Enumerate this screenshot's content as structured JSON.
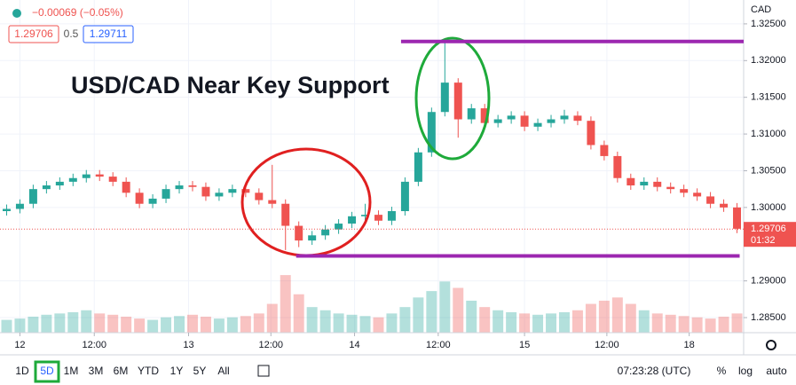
{
  "header": {
    "change": "−0.00069 (−0.05%)",
    "bid": 1.29706,
    "spread": 0.5,
    "ask": 1.29711
  },
  "chart_data": {
    "type": "candlestick",
    "title": "USD/CAD Near Key Support",
    "currency": "CAD",
    "up_color": "#26a69a",
    "down_color": "#ef5350",
    "grid": true,
    "xlim": [
      0,
      56
    ],
    "ylim": [
      1.28295,
      1.32825
    ],
    "yticks": [
      {
        "value": 1.325,
        "label": "1.32500"
      },
      {
        "value": 1.32,
        "label": "1.32000"
      },
      {
        "value": 1.315,
        "label": "1.31500"
      },
      {
        "value": 1.31,
        "label": "1.31000"
      },
      {
        "value": 1.305,
        "label": "1.30500"
      },
      {
        "value": 1.3,
        "label": "1.30000"
      },
      {
        "value": 1.29,
        "label": "1.29000"
      },
      {
        "value": 1.285,
        "label": "1.28500"
      }
    ],
    "xticks": [
      {
        "value": 1.5,
        "label": "12"
      },
      {
        "value": 7.1,
        "label": "12:00"
      },
      {
        "value": 14.2,
        "label": "13"
      },
      {
        "value": 20.4,
        "label": "12:00"
      },
      {
        "value": 26.7,
        "label": "14"
      },
      {
        "value": 33,
        "label": "12:00"
      },
      {
        "value": 39.5,
        "label": "15"
      },
      {
        "value": 45.7,
        "label": "12:00"
      },
      {
        "value": 51.9,
        "label": "18"
      }
    ],
    "open": [
      1.2995,
      1.2998,
      1.3005,
      1.3025,
      1.303,
      1.3035,
      1.304,
      1.3045,
      1.3042,
      1.3035,
      1.302,
      1.3005,
      1.3012,
      1.3025,
      1.303,
      1.3028,
      1.3015,
      1.302,
      1.3025,
      1.302,
      1.301,
      1.3005,
      1.2975,
      1.2955,
      1.2962,
      1.297,
      1.2978,
      1.2988,
      1.299,
      1.2982,
      1.2995,
      1.3035,
      1.3075,
      1.313,
      1.317,
      1.312,
      1.3135,
      1.3115,
      1.312,
      1.3125,
      1.311,
      1.3115,
      1.312,
      1.3125,
      1.3118,
      1.3085,
      1.307,
      1.304,
      1.303,
      1.3035,
      1.3028,
      1.3025,
      1.302,
      1.3015,
      1.3005,
      1.3
    ],
    "high": [
      1.3004,
      1.3011,
      1.3031,
      1.3036,
      1.3041,
      1.3046,
      1.3051,
      1.3051,
      1.3048,
      1.3041,
      1.3026,
      1.3018,
      1.3031,
      1.3036,
      1.3036,
      1.3034,
      1.3026,
      1.3031,
      1.3031,
      1.3026,
      1.3058,
      1.3011,
      1.2981,
      1.2968,
      1.2976,
      1.2984,
      1.2994,
      1.3005,
      1.2996,
      1.3001,
      1.3041,
      1.3081,
      1.3136,
      1.3225,
      1.3176,
      1.3141,
      1.3141,
      1.3126,
      1.3131,
      1.3131,
      1.3121,
      1.3126,
      1.3133,
      1.3131,
      1.3124,
      1.3091,
      1.3076,
      1.3046,
      1.3041,
      1.3041,
      1.3034,
      1.3031,
      1.3026,
      1.3021,
      1.3011,
      1.3006
    ],
    "low": [
      1.2989,
      1.2992,
      1.2999,
      1.3019,
      1.3024,
      1.3029,
      1.3034,
      1.3036,
      1.3029,
      1.3014,
      1.2999,
      1.2999,
      1.3006,
      1.3019,
      1.3022,
      1.3009,
      1.3009,
      1.3014,
      1.3014,
      1.3004,
      1.2999,
      1.2942,
      1.2946,
      1.2949,
      1.2956,
      1.2964,
      1.2972,
      1.2982,
      1.2976,
      1.2976,
      1.2989,
      1.3029,
      1.3069,
      1.3124,
      1.3095,
      1.3114,
      1.3109,
      1.3109,
      1.3114,
      1.3104,
      1.3104,
      1.3109,
      1.3114,
      1.3112,
      1.3079,
      1.3064,
      1.3034,
      1.3024,
      1.3024,
      1.3022,
      1.3019,
      1.3014,
      1.3009,
      1.2999,
      1.2994,
      1.2965
    ],
    "close": [
      1.2998,
      1.3005,
      1.3025,
      1.303,
      1.3035,
      1.304,
      1.3045,
      1.3042,
      1.3035,
      1.302,
      1.3005,
      1.3012,
      1.3025,
      1.303,
      1.3028,
      1.3015,
      1.302,
      1.3025,
      1.302,
      1.301,
      1.3005,
      1.2975,
      1.2955,
      1.2962,
      1.297,
      1.2978,
      1.2988,
      1.299,
      1.2982,
      1.2995,
      1.3035,
      1.3075,
      1.313,
      1.317,
      1.312,
      1.3135,
      1.3115,
      1.312,
      1.3125,
      1.311,
      1.3115,
      1.312,
      1.3125,
      1.3118,
      1.3085,
      1.307,
      1.304,
      1.303,
      1.3035,
      1.3028,
      1.3025,
      1.302,
      1.3015,
      1.3005,
      1.3,
      1.2971
    ],
    "volume": [
      20,
      22,
      25,
      28,
      30,
      32,
      35,
      30,
      28,
      25,
      22,
      20,
      24,
      26,
      28,
      25,
      22,
      24,
      26,
      30,
      45,
      90,
      60,
      40,
      35,
      30,
      28,
      26,
      24,
      30,
      40,
      55,
      65,
      80,
      70,
      50,
      40,
      35,
      32,
      30,
      28,
      30,
      32,
      35,
      45,
      50,
      55,
      45,
      35,
      30,
      28,
      26,
      24,
      22,
      25,
      30
    ],
    "volume_lim": [
      0,
      520
    ],
    "level_color": "#9c27b0",
    "levels": [
      {
        "value": 1.3226,
        "x_from": 30.2,
        "x_to": 56
      },
      {
        "value": 1.2934,
        "x_from": 22.3,
        "x_to": 55.7
      }
    ],
    "last_price": 1.29706,
    "countdown": "01:32"
  },
  "toolbar": {
    "ranges": [
      "1D",
      "5D",
      "1M",
      "3M",
      "6M",
      "YTD",
      "1Y",
      "5Y",
      "All"
    ],
    "selected": 1,
    "time": "07:23:28 (UTC)",
    "percent": "%",
    "log": "log",
    "auto": "auto"
  }
}
